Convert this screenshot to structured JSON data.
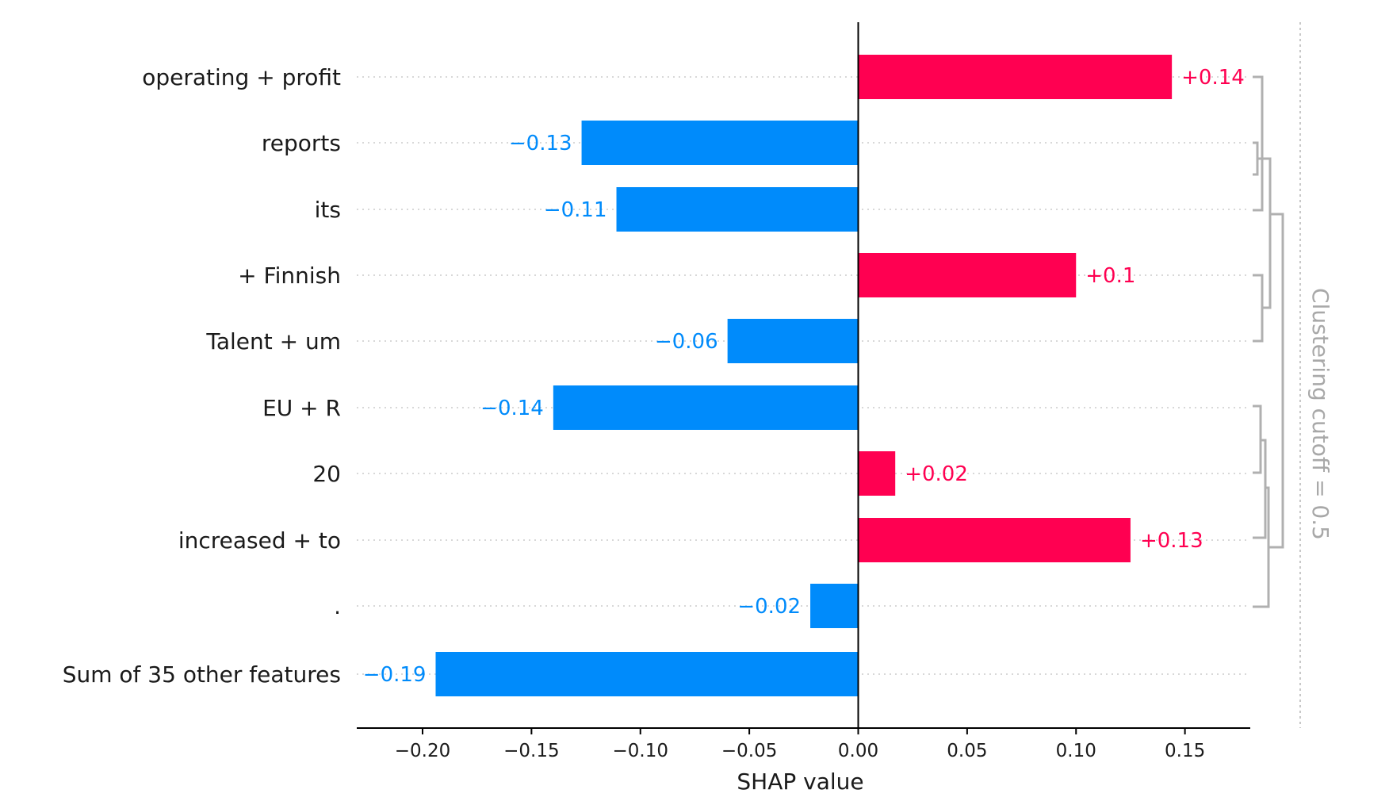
{
  "chart_data": {
    "type": "bar",
    "orientation": "horizontal",
    "features": [
      {
        "label": "operating + profit",
        "value": 0.144,
        "value_label": "+0.14"
      },
      {
        "label": "reports",
        "value": -0.127,
        "value_label": "−0.13"
      },
      {
        "label": "its",
        "value": -0.111,
        "value_label": "−0.11"
      },
      {
        "label": "+ Finnish",
        "value": 0.1,
        "value_label": "+0.1"
      },
      {
        "label": "Talent + um",
        "value": -0.06,
        "value_label": "−0.06"
      },
      {
        "label": "EU + R",
        "value": -0.14,
        "value_label": "−0.14"
      },
      {
        "label": "20",
        "value": 0.017,
        "value_label": "+0.02"
      },
      {
        "label": "increased + to",
        "value": 0.125,
        "value_label": "+0.13"
      },
      {
        "label": ".",
        "value": -0.022,
        "value_label": "−0.02"
      },
      {
        "label": "Sum of 35 other features",
        "value": -0.194,
        "value_label": "−0.19"
      }
    ],
    "xlabel": "SHAP value",
    "xlim": [
      -0.23,
      0.18
    ],
    "xticks": [
      -0.2,
      -0.15,
      -0.1,
      -0.05,
      0.0,
      0.05,
      0.1,
      0.15
    ],
    "xtick_labels": [
      "−0.20",
      "−0.15",
      "−0.10",
      "−0.05",
      "0.00",
      "0.05",
      "0.10",
      "0.15"
    ],
    "cutoff_label": "Clustering cutoff = 0.5",
    "colors": {
      "positive": "#ff0051",
      "negative": "#008bfb",
      "axis": "#000000",
      "grid": "#cccccc",
      "dendrogram": "#b0b0b0"
    }
  }
}
